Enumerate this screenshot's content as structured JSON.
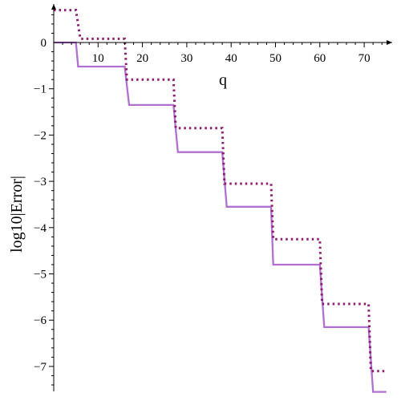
{
  "chart_data": {
    "type": "line",
    "title": "",
    "xlabel": "q",
    "ylabel": "log10|Error|",
    "xlim": [
      0,
      75
    ],
    "ylim": [
      -7.6,
      0.75
    ],
    "x_ticks": [
      "10",
      "20",
      "30",
      "40",
      "50",
      "60",
      "70"
    ],
    "y_ticks": [
      "0",
      "−1",
      "−2",
      "−3",
      "−4",
      "−5",
      "−6",
      "−7"
    ],
    "grid": false,
    "legend": "none",
    "series": [
      {
        "style": "solid",
        "color": "#b070d0",
        "x": [
          0,
          5,
          5.5,
          16,
          17,
          27,
          28,
          38,
          39,
          49,
          49.5,
          60,
          61,
          71,
          72,
          75
        ],
        "y": [
          0,
          0,
          -0.52,
          -0.52,
          -1.35,
          -1.35,
          -2.37,
          -2.37,
          -3.55,
          -3.55,
          -4.8,
          -4.8,
          -6.15,
          -6.15,
          -7.55,
          -7.55
        ]
      },
      {
        "style": "dotted",
        "color": "#8b1e6f",
        "x": [
          0,
          5,
          6,
          16,
          16.5,
          27,
          27.5,
          38,
          38.5,
          49,
          49.5,
          60,
          60.5,
          71,
          71.5,
          75
        ],
        "y": [
          0.7,
          0.7,
          0.08,
          0.08,
          -0.8,
          -0.8,
          -1.85,
          -1.85,
          -3.05,
          -3.05,
          -4.25,
          -4.25,
          -5.65,
          -5.65,
          -7.1,
          -7.1
        ]
      }
    ]
  }
}
